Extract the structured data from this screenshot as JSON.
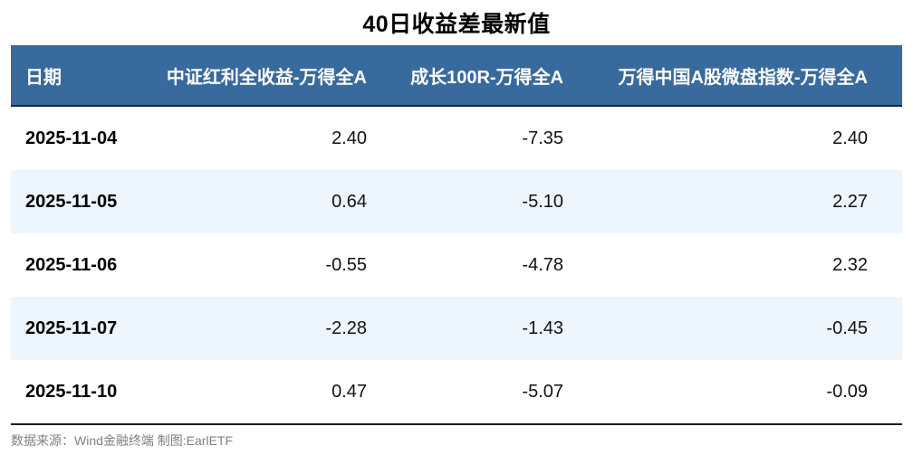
{
  "title": "40日收益差最新值",
  "footer": {
    "source_note": "数据来源：Wind金融终端 制图:EarlETF"
  },
  "colors": {
    "page_bg": "#ffffff",
    "title_text": "#000000",
    "header_bg": "#386a9e",
    "header_text": "#ffffff",
    "header_border": "#14253f",
    "band_bg": "#edf6fc",
    "bottom_border": "#1a1a1a",
    "footer_text": "#808080"
  },
  "chart_data": {
    "type": "table",
    "title": "40日收益差最新值",
    "columns": [
      "日期",
      "中证红利全收益-万得全A",
      "成长100R-万得全A",
      "万得中国A股微盘指数-万得全A"
    ],
    "rows": [
      [
        "2025-11-04",
        "2.40",
        "-7.35",
        "2.40"
      ],
      [
        "2025-11-05",
        "0.64",
        "-5.10",
        "2.27"
      ],
      [
        "2025-11-06",
        "-0.55",
        "-4.78",
        "2.32"
      ],
      [
        "2025-11-07",
        "-2.28",
        "-1.43",
        "-0.45"
      ],
      [
        "2025-11-10",
        "0.47",
        "-5.07",
        "-0.09"
      ]
    ],
    "layout": {
      "banded_rows": true,
      "banded_row_indexes": [
        1,
        3
      ],
      "date_column_align": "left",
      "value_columns_align": "right"
    },
    "source": "数据来源：Wind金融终端 制图:EarlETF"
  }
}
